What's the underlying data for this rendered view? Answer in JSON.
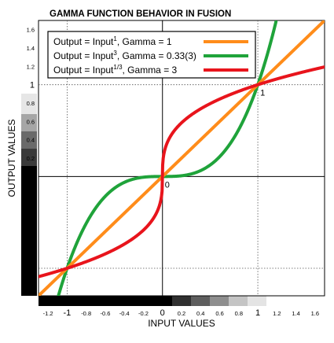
{
  "chart_data": {
    "type": "line",
    "title": "GAMMA FUNCTION BEHAVIOR IN FUSION",
    "xlabel": "INPUT VALUES",
    "ylabel": "OUTPUT VALUES",
    "xlim": [
      -1.3,
      1.7
    ],
    "ylim": [
      -1.3,
      1.7
    ],
    "x_ticks": [
      {
        "v": -1.2,
        "label": "-1.2"
      },
      {
        "v": -1,
        "label": "-1"
      },
      {
        "v": -0.8,
        "label": "-0.8"
      },
      {
        "v": -0.6,
        "label": "-0.6"
      },
      {
        "v": -0.4,
        "label": "-0.4"
      },
      {
        "v": -0.2,
        "label": "-0.2"
      },
      {
        "v": 0,
        "label": "0"
      },
      {
        "v": 0.2,
        "label": "0.2"
      },
      {
        "v": 0.4,
        "label": "0.4"
      },
      {
        "v": 0.6,
        "label": "0.6"
      },
      {
        "v": 0.8,
        "label": "0.8"
      },
      {
        "v": 1,
        "label": "1"
      },
      {
        "v": 1.2,
        "label": "1.2"
      },
      {
        "v": 1.4,
        "label": "1.4"
      },
      {
        "v": 1.6,
        "label": "1.6"
      }
    ],
    "y_ticks": [
      {
        "v": 1.6,
        "label": "1.6"
      },
      {
        "v": 1.4,
        "label": "1.4"
      },
      {
        "v": 1.2,
        "label": "1.2"
      },
      {
        "v": 1,
        "label": "1"
      },
      {
        "v": 0.8,
        "label": "0.8"
      },
      {
        "v": 0.6,
        "label": "0.6"
      },
      {
        "v": 0.4,
        "label": "0.4"
      },
      {
        "v": 0.2,
        "label": "0.2"
      },
      {
        "v": 0,
        "label": "0"
      },
      {
        "v": -0.2,
        "label": "-0.2"
      },
      {
        "v": -0.4,
        "label": "-0.4"
      },
      {
        "v": -0.6,
        "label": "-0.6"
      },
      {
        "v": -0.8,
        "label": "-0.8"
      },
      {
        "v": -1,
        "label": "-1"
      },
      {
        "v": -1.2,
        "label": "-1.2"
      }
    ],
    "annotations": [
      {
        "text": "0",
        "x": 0,
        "y": 0
      },
      {
        "text": "1",
        "x": 1,
        "y": 1
      }
    ],
    "legend": {
      "position": "top-left",
      "entries": [
        {
          "prefix": "Output = Input",
          "sup": "1",
          "suffix": ", Gamma = 1",
          "color": "#ff8c1a"
        },
        {
          "prefix": "Output = Input",
          "sup": "3",
          "suffix": ", Gamma = 0.33(3)",
          "color": "#1fa33a"
        },
        {
          "prefix": "Output = Input",
          "sup": "1/3",
          "suffix": ", Gamma = 3",
          "color": "#e8141c"
        }
      ]
    },
    "series": [
      {
        "color": "#ff8c1a",
        "exponent": 1,
        "x": [
          -1.3,
          -1.2,
          -1,
          -0.8,
          -0.6,
          -0.4,
          -0.2,
          0,
          0.2,
          0.4,
          0.6,
          0.8,
          1,
          1.2,
          1.4,
          1.7
        ],
        "y": [
          -1.3,
          -1.2,
          -1,
          -0.8,
          -0.6,
          -0.4,
          -0.2,
          0,
          0.2,
          0.4,
          0.6,
          0.8,
          1,
          1.2,
          1.4,
          1.7
        ]
      },
      {
        "color": "#1fa33a",
        "exponent": 3,
        "x": [
          -1.2,
          -1.1,
          -1,
          -0.9,
          -0.8,
          -0.6,
          -0.4,
          -0.2,
          0,
          0.2,
          0.4,
          0.6,
          0.8,
          0.9,
          1,
          1.1,
          1.19
        ],
        "y": [
          -1.728,
          -1.331,
          -1,
          -0.729,
          -0.512,
          -0.216,
          -0.064,
          -0.008,
          0,
          0.008,
          0.064,
          0.216,
          0.512,
          0.729,
          1,
          1.331,
          1.685
        ]
      },
      {
        "color": "#e8141c",
        "exponent": 0.3333,
        "x": [
          -1.3,
          -1.2,
          -1,
          -0.8,
          -0.6,
          -0.4,
          -0.2,
          -0.1,
          -0.02,
          0,
          0.02,
          0.1,
          0.2,
          0.4,
          0.6,
          0.8,
          1,
          1.2,
          1.4,
          1.7
        ],
        "y": [
          -1.091,
          -1.063,
          -1,
          -0.928,
          -0.843,
          -0.737,
          -0.585,
          -0.464,
          -0.271,
          0,
          0.271,
          0.464,
          0.585,
          0.737,
          0.843,
          0.928,
          1,
          1.063,
          1.119,
          1.193
        ]
      }
    ]
  }
}
